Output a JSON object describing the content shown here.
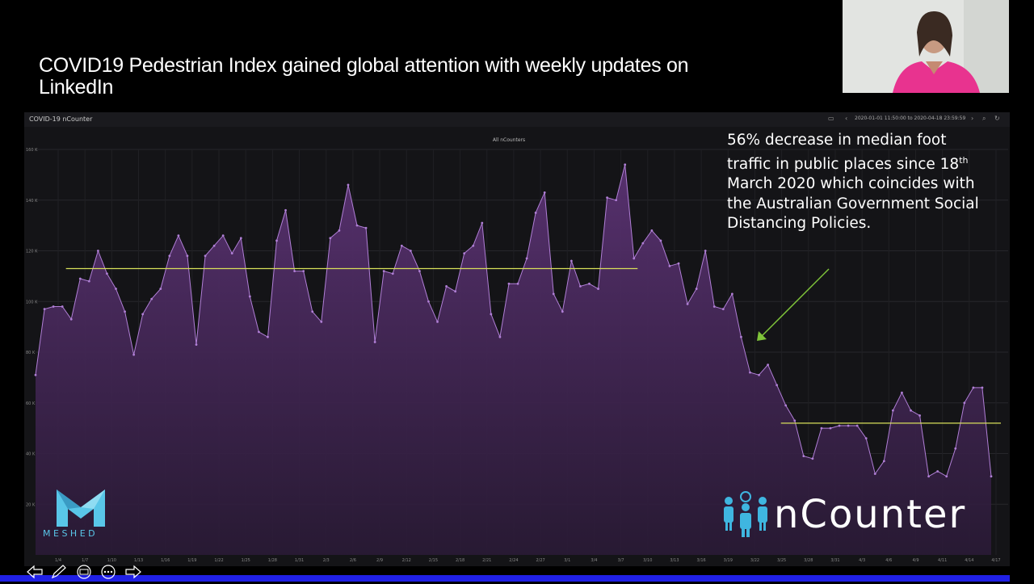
{
  "slide": {
    "title": "COVID19 Pedestrian Index gained global attention with weekly updates on LinkedIn",
    "annotation_main": "56% decrease in median foot traffic in public places since 18",
    "annotation_sup": "th",
    "annotation_rest": " March 2020 which coincides with the Australian Government Social Distancing Policies.",
    "meshed_label": "MESHED",
    "ncounter_label": "nCounter"
  },
  "dashboard": {
    "title": "COVID-19 nCounter",
    "time_range": "2020-01-01 11:50:00 to 2020-04-18 23:59:59"
  },
  "colors": {
    "background": "#000000",
    "panel": "#141417",
    "series_line": "#b07fd6",
    "series_fill": "#5a3272",
    "reference_line": "#d8e05a",
    "arrow": "#7fc43a",
    "accent": "#59c6e8",
    "bottom_bar": "#2020e6"
  },
  "chart_data": {
    "type": "area",
    "title": "All nCounters",
    "xlabel": "",
    "ylabel": "",
    "ylim": [
      0,
      160000
    ],
    "y_ticks": [
      "20 K",
      "40 K",
      "60 K",
      "80 K",
      "100 K",
      "120 K",
      "140 K",
      "160 K"
    ],
    "y_tick_values": [
      20000,
      40000,
      60000,
      80000,
      100000,
      120000,
      140000,
      160000
    ],
    "x_tick_labels": [
      "1/4",
      "1/7",
      "1/10",
      "1/13",
      "1/16",
      "1/19",
      "1/22",
      "1/25",
      "1/28",
      "1/31",
      "2/3",
      "2/6",
      "2/9",
      "2/12",
      "2/15",
      "2/18",
      "2/21",
      "2/24",
      "2/27",
      "3/1",
      "3/4",
      "3/7",
      "3/10",
      "3/13",
      "3/16",
      "3/19",
      "3/22",
      "3/25",
      "3/28",
      "3/31",
      "4/3",
      "4/6",
      "4/9",
      "4/11",
      "4/14",
      "4/17"
    ],
    "grid": true,
    "legend": "none",
    "series": [
      {
        "values": [
          71000,
          97000,
          98000,
          98000,
          93000,
          109000,
          108000,
          120000,
          111000,
          105000,
          96000,
          79000,
          95000,
          101000,
          105000,
          118000,
          126000,
          118000,
          83000,
          118000,
          122000,
          126000,
          119000,
          125000,
          102000,
          88000,
          86000,
          124000,
          136000,
          112000,
          112000,
          96000,
          92000,
          125000,
          128000,
          146000,
          130000,
          129000,
          84000,
          112000,
          111000,
          122000,
          120000,
          112000,
          100000,
          92000,
          106000,
          104000,
          119000,
          122000,
          131000,
          95000,
          86000,
          107000,
          107000,
          117000,
          135000,
          143000,
          103000,
          96000,
          116000,
          106000,
          107000,
          105000,
          141000,
          140000,
          154000,
          117000,
          123000,
          128000,
          124000,
          114000,
          115000,
          99000,
          105000,
          120000,
          98000,
          97000,
          103000,
          86000,
          72000,
          71000,
          75000,
          67000,
          59000,
          53000,
          39000,
          38000,
          50000,
          50000,
          51000,
          51000,
          51000,
          46000,
          32000,
          37000,
          57000,
          64000,
          57000,
          55000,
          31000,
          33000,
          31000,
          42000,
          60000,
          66000,
          66000,
          31000
        ]
      }
    ],
    "reference_lines": [
      {
        "x_start": 0.02,
        "x_end": 0.63,
        "y": 113000
      },
      {
        "x_start": 0.78,
        "x_end": 1.0,
        "y": 52000
      }
    ]
  }
}
